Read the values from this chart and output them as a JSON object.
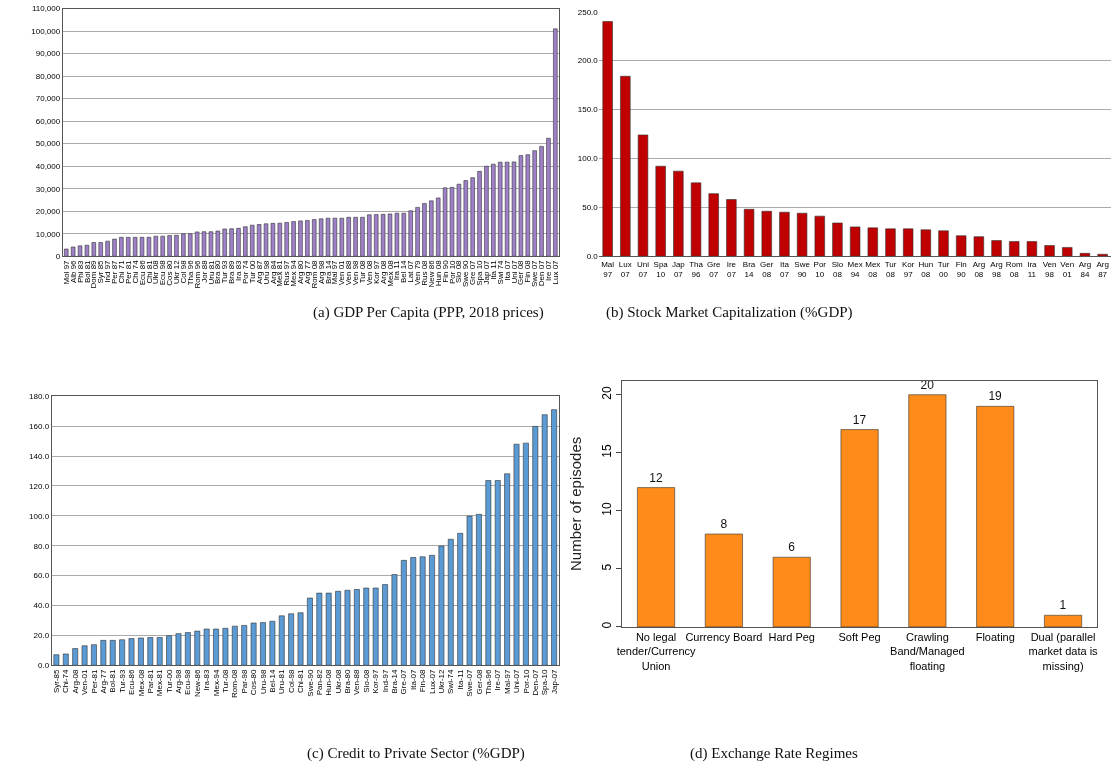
{
  "chart_data": [
    {
      "type": "bar",
      "title": "(a) GDP Per Capita (PPP, 2018 prices)",
      "color": "#9e80c8",
      "grid": "y",
      "categories": [
        "Mol 97",
        "Alb 96",
        "Phi 83",
        "Bol 81",
        "Dom 89",
        "Syr 85",
        "Ind 97",
        "Per 87",
        "Chi 71",
        "Per 81",
        "Chi 74",
        "Ecu 86",
        "Chi 81",
        "Ukr 08",
        "Ecu 98",
        "Cos 80",
        "Ukr 12",
        "Col 98",
        "Tha 96",
        "Rom 96",
        "Jor 88",
        "Uru 81",
        "Bra 80",
        "Tur 93",
        "Bra 89",
        "Ira 83",
        "Por 74",
        "Tur 00",
        "Arg 87",
        "Uru 98",
        "Arg 84",
        "Mex 81",
        "Rus 97",
        "Mex 94",
        "Arg 80",
        "Arg 77",
        "Rom 08",
        "Arg 98",
        "Bra 14",
        "Mal 97",
        "Ven 01",
        "Ven 88",
        "Ven 98",
        "Tur 08",
        "Ven 08",
        "Kor 97",
        "Arg 08",
        "Mex 08",
        "Ira 11",
        "Bel 14",
        "Lat 07",
        "Ven 79",
        "Rus 08",
        "New 86",
        "Hun 08",
        "Fin 90",
        "Por 10",
        "Slo 08",
        "Swe 90",
        "Gre 07",
        "Spa 10",
        "Jap 07",
        "Ita 11",
        "Swi 74",
        "Ita 07",
        "Uni 07",
        "Ger 08",
        "Fin 08",
        "Swe 07",
        "Den 07",
        "Ire 07",
        "Lux 07"
      ],
      "values": [
        3200,
        4100,
        4600,
        4900,
        6100,
        6100,
        6700,
        7600,
        8400,
        8400,
        8400,
        8400,
        8400,
        8900,
        8900,
        9200,
        9300,
        10000,
        10000,
        10800,
        10900,
        10900,
        11200,
        12100,
        12200,
        12400,
        13100,
        13800,
        14100,
        14400,
        14600,
        14700,
        15000,
        15400,
        15700,
        15900,
        16300,
        16600,
        16900,
        16900,
        16900,
        17300,
        17300,
        17300,
        18400,
        18500,
        18600,
        18800,
        19100,
        19100,
        20200,
        21700,
        23400,
        24600,
        25900,
        30400,
        30600,
        32000,
        33600,
        34900,
        37700,
        40000,
        40900,
        41800,
        41800,
        41900,
        44700,
        45100,
        46900,
        48800,
        52400,
        101000
      ],
      "ylim": [
        0,
        110000
      ],
      "yticks": [
        0,
        {
          "value": 10000,
          "label": "10,000"
        },
        {
          "value": 20000,
          "label": "20,000"
        },
        {
          "value": 30000,
          "label": "30,000"
        },
        {
          "value": 40000,
          "label": "40,000"
        },
        {
          "value": 50000,
          "label": "50,000"
        },
        {
          "value": 60000,
          "label": "60,000"
        },
        {
          "value": 70000,
          "label": "70,000"
        },
        {
          "value": 80000,
          "label": "80,000"
        },
        {
          "value": 90000,
          "label": "90,000"
        },
        {
          "value": 100000,
          "label": "100,000"
        },
        {
          "value": 110000,
          "label": "110,000"
        }
      ]
    },
    {
      "type": "bar",
      "title": "(b) Stock Market Capitalization (%GDP)",
      "color": "#c00000",
      "grid": "y",
      "categories": [
        "Mal\n97",
        "Lux\n07",
        "Uni\n07",
        "Spa\n10",
        "Jap\n07",
        "Tha\n96",
        "Gre\n07",
        "Ire\n07",
        "Bra\n14",
        "Ger\n08",
        "Ita\n07",
        "Swe\n90",
        "Por\n10",
        "Slo\n08",
        "Mex\n94",
        "Mex\n08",
        "Tur\n08",
        "Kor\n97",
        "Hun\n08",
        "Tur\n00",
        "Fin\n90",
        "Arg\n08",
        "Arg\n98",
        "Rom\n08",
        "Ira\n11",
        "Ven\n98",
        "Ven\n01",
        "Arg\n84",
        "Arg\n87"
      ],
      "values": [
        240,
        184,
        124,
        92,
        87,
        75,
        64,
        58,
        48,
        46,
        45,
        44,
        41,
        34,
        30,
        29,
        28,
        28,
        27,
        26,
        21,
        20,
        16,
        15,
        15,
        11,
        9,
        3,
        2
      ],
      "ylim": [
        0,
        250
      ],
      "yticks": [
        {
          "value": 0,
          "label": "0.0"
        },
        {
          "value": 50,
          "label": "50.0"
        },
        {
          "value": 100,
          "label": "100.0"
        },
        {
          "value": 150,
          "label": "150.0"
        },
        {
          "value": 200,
          "label": "200.0"
        },
        {
          "value": 250,
          "label": "250.0"
        }
      ]
    },
    {
      "type": "bar",
      "title": "(c) Credit to Private Sector (%GDP)",
      "color": "#5b9bd5",
      "grid": "y",
      "categories": [
        "Syr-85",
        "Chi-74",
        "Arg-08",
        "Ven-01",
        "Per-81",
        "Arg-77",
        "Bol-81",
        "Tur-93",
        "Ecu-86",
        "Mex-08",
        "Par-81",
        "Mex-81",
        "Tur-00",
        "Arg-98",
        "Ecu-98",
        "New-86",
        "Ira-83",
        "Mex-94",
        "Tur-08",
        "Rom-08",
        "Par-98",
        "Cos-80",
        "Uru-98",
        "Bel-14",
        "Uru-81",
        "Col-98",
        "Chi-81",
        "Swe-90",
        "Pan-82",
        "Hun-08",
        "Ukr-08",
        "Bra-80",
        "Ven-88",
        "Slo-08",
        "Kor-97",
        "Ind-97",
        "Bra-14",
        "Gre-07",
        "Ita-07",
        "Fin-08",
        "Lux-07",
        "Ukr-12",
        "Swi-74",
        "Ita-11",
        "Swe-07",
        "Ger-08",
        "Tha-96",
        "Ire-07",
        "Mal-97",
        "Uni-07",
        "Por-10",
        "Den-07",
        "Spa-10",
        "Jap-07"
      ],
      "values": [
        7.1,
        7.6,
        11.2,
        13.1,
        13.8,
        16.7,
        16.7,
        17.1,
        17.9,
        18.3,
        18.6,
        18.6,
        19.8,
        21.2,
        21.9,
        22.9,
        24.3,
        24.3,
        24.8,
        26.2,
        26.7,
        28.3,
        28.6,
        29.5,
        33.1,
        34.5,
        35.2,
        45.0,
        48.3,
        48.3,
        49.5,
        50.2,
        50.7,
        51.7,
        51.7,
        54.0,
        60.7,
        70.2,
        72.1,
        72.6,
        73.6,
        79.8,
        84.3,
        88.3,
        99.8,
        101.0,
        123.6,
        123.6,
        128.1,
        147.9,
        148.6,
        159.8,
        167.6,
        171.0
      ],
      "ylim": [
        0,
        180
      ],
      "yticks": [
        {
          "value": 0,
          "label": "0.0"
        },
        {
          "value": 20,
          "label": "20.0"
        },
        {
          "value": 40,
          "label": "40.0"
        },
        {
          "value": 60,
          "label": "60.0"
        },
        {
          "value": 80,
          "label": "80.0"
        },
        {
          "value": 100,
          "label": "100.0"
        },
        {
          "value": 120,
          "label": "120.0"
        },
        {
          "value": 140,
          "label": "140.0"
        },
        {
          "value": 160,
          "label": "160.0"
        },
        {
          "value": 180,
          "label": "180.0"
        }
      ]
    },
    {
      "type": "bar",
      "title": "(d) Exchange Rate Regimes",
      "ylabel": "Number of episodes",
      "color": "#ff8c1a",
      "data_labels": true,
      "categories": [
        "No legal\ntender/Currency\nUnion",
        "Currency Board",
        "Hard Peg",
        "Soft Peg",
        "Crawling\nBand/Managed\nfloating",
        "Floating",
        "Dual (parallel\nmarket data is\nmissing)"
      ],
      "values": [
        12,
        8,
        6,
        17,
        20,
        19,
        1
      ],
      "ylim": [
        0,
        21.2
      ],
      "yticks": [
        0,
        5,
        10,
        15,
        20
      ]
    }
  ]
}
